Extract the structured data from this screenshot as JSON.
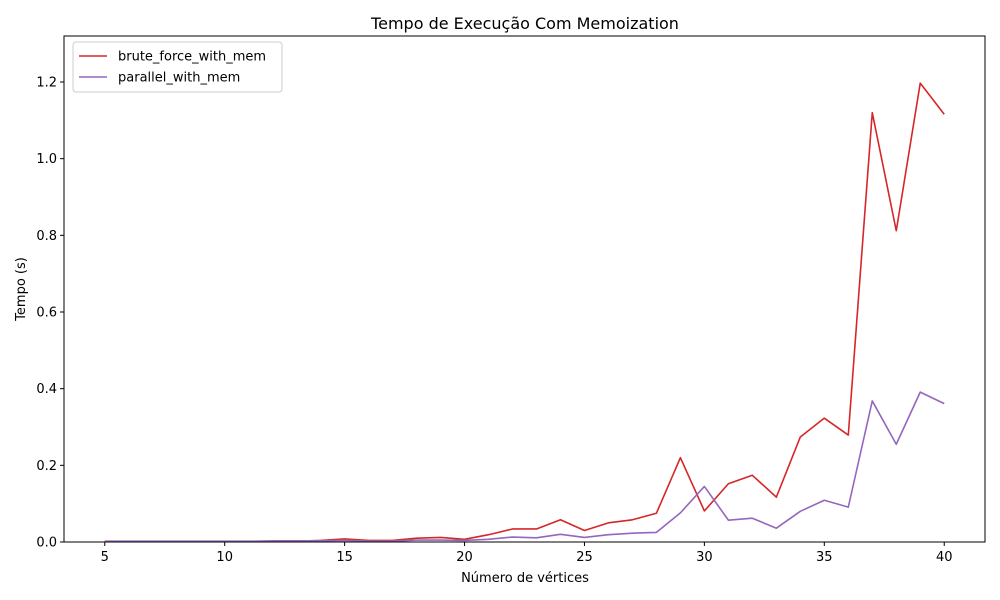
{
  "chart_data": {
    "type": "line",
    "title": "Tempo de Execução Com Memoization",
    "xlabel": "Número de vértices",
    "ylabel": "Tempo (s)",
    "xlim": [
      3.3,
      41.7
    ],
    "ylim": [
      0,
      1.32
    ],
    "xticks": [
      5,
      10,
      15,
      20,
      25,
      30,
      35,
      40
    ],
    "yticks": [
      0.0,
      0.2,
      0.4,
      0.6,
      0.8,
      1.0,
      1.2
    ],
    "grid": false,
    "legend_position": "top-left",
    "x": [
      5,
      6,
      7,
      8,
      9,
      10,
      11,
      12,
      13,
      14,
      15,
      16,
      17,
      18,
      19,
      20,
      21,
      22,
      23,
      24,
      25,
      26,
      27,
      28,
      29,
      30,
      31,
      32,
      33,
      34,
      35,
      36,
      37,
      38,
      39,
      40
    ],
    "series": [
      {
        "name": "brute_force_with_mem",
        "color": "#d62728",
        "values": [
          0.001,
          0.001,
          0.001,
          0.001,
          0.001,
          0.001,
          0.001,
          0.002,
          0.002,
          0.004,
          0.008,
          0.004,
          0.004,
          0.01,
          0.012,
          0.007,
          0.019,
          0.034,
          0.034,
          0.058,
          0.03,
          0.05,
          0.058,
          0.075,
          0.22,
          0.081,
          0.152,
          0.174,
          0.117,
          0.274,
          0.323,
          0.279,
          1.12,
          0.812,
          1.197,
          1.116
        ]
      },
      {
        "name": "parallel_with_mem",
        "color": "#9467bd",
        "values": [
          0.002,
          0.002,
          0.002,
          0.002,
          0.002,
          0.002,
          0.002,
          0.003,
          0.003,
          0.003,
          0.004,
          0.002,
          0.002,
          0.005,
          0.005,
          0.004,
          0.007,
          0.013,
          0.011,
          0.02,
          0.012,
          0.019,
          0.023,
          0.025,
          0.076,
          0.145,
          0.057,
          0.062,
          0.036,
          0.08,
          0.109,
          0.091,
          0.368,
          0.255,
          0.391,
          0.361
        ]
      }
    ]
  }
}
